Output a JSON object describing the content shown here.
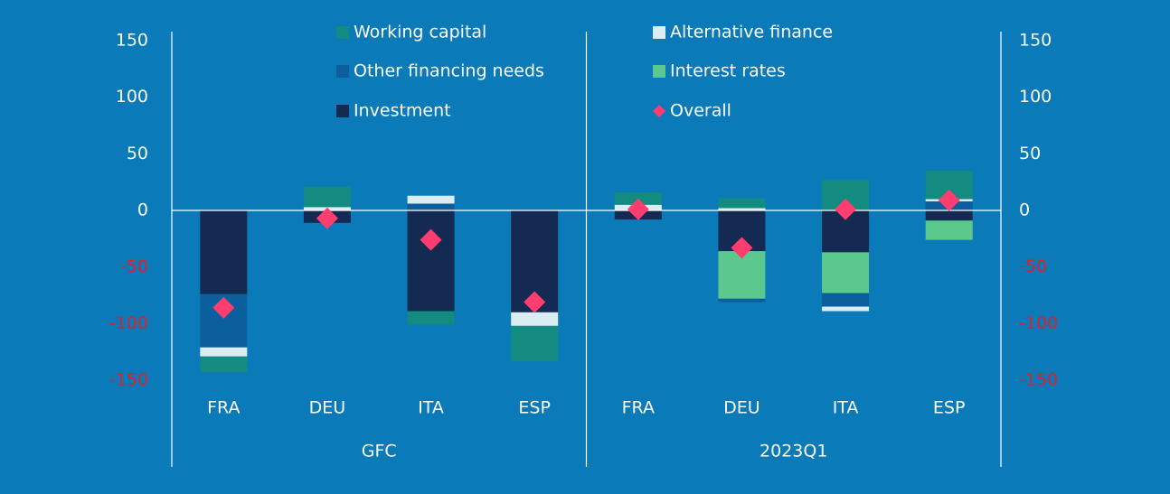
{
  "chart_data": {
    "type": "bar",
    "stacked": true,
    "groups": [
      "GFC",
      "2023Q1"
    ],
    "categories": [
      "FRA",
      "DEU",
      "ITA",
      "ESP",
      "FRA",
      "DEU",
      "ITA",
      "ESP"
    ],
    "series": [
      {
        "name": "Investment",
        "color": "#142a52",
        "values": [
          -74,
          -11,
          -89,
          -90,
          -8,
          -36,
          -37,
          -9
        ]
      },
      {
        "name": "Interest rates",
        "color": "#5bc98d",
        "values": [
          null,
          null,
          null,
          null,
          null,
          -42,
          -36,
          -17
        ]
      },
      {
        "name": "Other financing needs",
        "color": "#0b5f9c",
        "values": [
          -47,
          null,
          6,
          null,
          null,
          -3,
          -12,
          8
        ]
      },
      {
        "name": "Alternative finance",
        "color": "#dcecf3",
        "values": [
          -8,
          3,
          7,
          -12,
          5,
          2,
          -4,
          2
        ]
      },
      {
        "name": "Working capital",
        "color": "#138b80",
        "values": [
          -14,
          18,
          -12,
          -31,
          11,
          9,
          27,
          25
        ]
      }
    ],
    "overall": {
      "name": "Overall",
      "color": "#ff3d6e",
      "values": [
        -86,
        -7,
        -26,
        -81,
        1,
        -33,
        1,
        9
      ]
    },
    "ylim": [
      -150,
      150
    ],
    "yticks": [
      -150,
      -100,
      -50,
      0,
      50,
      100,
      150
    ],
    "y2lim": [
      -150,
      150
    ],
    "y2ticks": [
      -150,
      -100,
      -50,
      0,
      50,
      100,
      150
    ]
  }
}
